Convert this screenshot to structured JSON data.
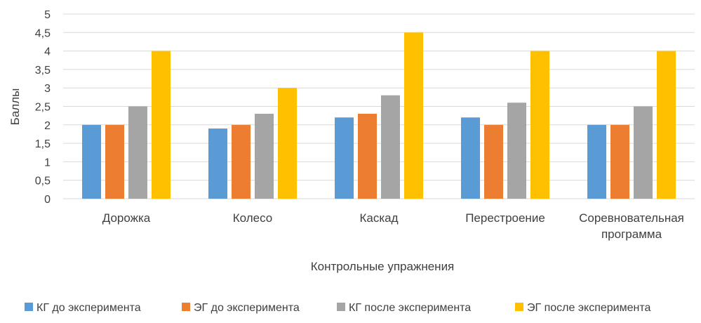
{
  "chart_data": {
    "type": "bar",
    "title": "",
    "xlabel": "Контрольные упражнения",
    "ylabel": "Баллы",
    "ylim": [
      0,
      5
    ],
    "yticks": [
      "0",
      "0,5",
      "1",
      "1,5",
      "2",
      "2,5",
      "3",
      "3,5",
      "4",
      "4,5",
      "5"
    ],
    "grid": true,
    "legend_position": "bottom",
    "categories": [
      [
        "Дорожка"
      ],
      [
        "Колесо"
      ],
      [
        "Каскад"
      ],
      [
        "Перестроение"
      ],
      [
        "Соревновательная",
        "программа"
      ]
    ],
    "series": [
      {
        "name": "КГ до эксперимента",
        "color": "#5B9BD5",
        "values": [
          2,
          1.9,
          2.2,
          2.2,
          2
        ]
      },
      {
        "name": "ЭГ до эксперимента",
        "color": "#ED7D31",
        "values": [
          2,
          2,
          2.3,
          2,
          2
        ]
      },
      {
        "name": "КГ после эксперимента",
        "color": "#A5A5A5",
        "values": [
          2.5,
          2.3,
          2.8,
          2.6,
          2.5
        ]
      },
      {
        "name": "ЭГ после эксперимента",
        "color": "#FFC000",
        "values": [
          4,
          3,
          4.5,
          4,
          4
        ]
      }
    ]
  }
}
